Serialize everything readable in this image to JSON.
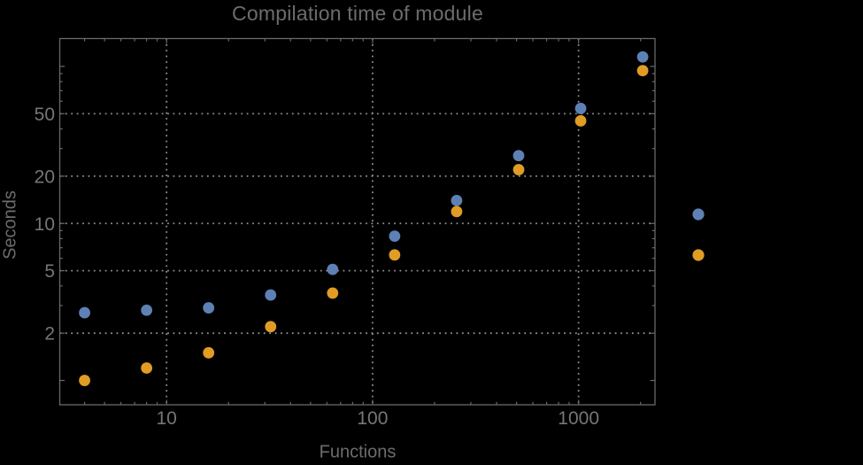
{
  "chart": {
    "background": "#000000",
    "text_color": "#767676",
    "frame_color": "#696969",
    "grid_color": "#8d8d8d"
  },
  "chart_data": {
    "type": "scatter",
    "title": "Compilation time of module",
    "xlabel": "Functions",
    "ylabel": "Seconds",
    "x_scale": "log",
    "y_scale": "log",
    "xlim": [
      3.03,
      2350
    ],
    "ylim": [
      0.7,
      150.5
    ],
    "grid": "dotted",
    "x_ticks": [
      10,
      100,
      1000
    ],
    "x_tick_labels": [
      "10",
      "100",
      "1000"
    ],
    "y_ticks": [
      2,
      5,
      10,
      20,
      50
    ],
    "y_tick_labels": [
      "2",
      "5",
      "10",
      "20",
      "50"
    ],
    "y_ticks_unlabeled": [
      1,
      100
    ],
    "x": [
      4,
      8,
      16,
      32,
      64,
      128,
      256,
      512,
      1024,
      2048
    ],
    "series": [
      {
        "name": "series-blue",
        "color": "#5E81B5",
        "values": [
          2.7,
          2.8,
          2.9,
          3.5,
          5.1,
          8.3,
          14,
          27,
          54,
          115
        ]
      },
      {
        "name": "series-orange",
        "color": "#E09C24",
        "values": [
          1.0,
          1.2,
          1.5,
          2.2,
          3.6,
          6.3,
          11.9,
          22,
          45,
          94
        ]
      }
    ],
    "legend": {
      "position": "right-outside",
      "labels_visible": false,
      "markers": [
        {
          "series": "series-blue",
          "color": "#5E81B5"
        },
        {
          "series": "series-orange",
          "color": "#E09C24"
        }
      ]
    }
  }
}
